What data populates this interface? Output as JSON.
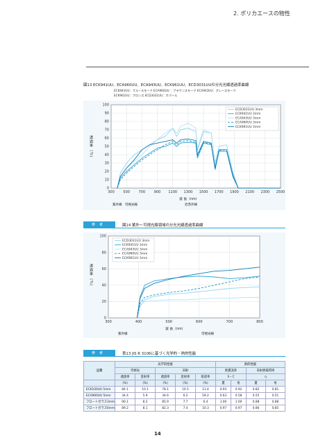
{
  "header": {
    "section_title": "2. ポリカエースの物性"
  },
  "figure13": {
    "caption": "図13 ECK941UU、ECA960UU、ECA943UU、ECK961UU、ECD3031UUの分光光線透過率曲線",
    "legend_row1": "ECK941UU：ブルースモーク ECA960UU ：ブラウンスモーク ECA943UU：グレースモーク",
    "legend_row2": "ECK961UU：ブロンズ ECD3031UU：オパール",
    "ylabel": "透過率（%）",
    "xlabel": "波 長（nm）",
    "band_uv": "紫外線",
    "band_vis": "可視光線",
    "band_ir": "近赤外線"
  },
  "figure14": {
    "badge": "参考",
    "caption": "図14 紫外〜可視光線領域の分光光線透過率曲線",
    "ylabel": "透過率（%）",
    "xlabel": "波 長（nm）",
    "band_uv": "紫外線",
    "band_vis": "可視光線"
  },
  "table13": {
    "badge": "参考",
    "caption": "表13 JIS R 3106に基づく光学的・熱的性能",
    "h_optical": "光学的性能",
    "h_thermal": "熱的性能",
    "h_product": "品種",
    "h_visible": "可視光",
    "h_solar": "日射",
    "h_u": "熱貫流率",
    "h_solar_gain": "日射熱取得率",
    "h_trans": "透過率",
    "h_refl": "反射率",
    "h_trans2": "透過率",
    "h_refl2": "反射率",
    "h_absorb": "吸収率",
    "h_summer": "夏",
    "h_winter": "冬",
    "h_sc": "S・C",
    "h_eta": "η",
    "units": [
      "(%)",
      "(%)",
      "(%)",
      "(%)",
      "(%)",
      "夏",
      "冬",
      "夏",
      "冬"
    ],
    "rows": [
      {
        "name": "ECK100UU 5mm",
        "cells": [
          "84.1",
          "10.1",
          "78.1",
          "10.5",
          "11.4",
          "0.93",
          "0.92",
          "0.82",
          "0.81"
        ]
      },
      {
        "name": "ECA960UU 5mm",
        "cells": [
          "34.4",
          "5.9",
          "34.6",
          "6.2",
          "59.2",
          "0.63",
          "0.58",
          "0.55",
          "0.51"
        ]
      },
      {
        "name": "フロートガラス3mm",
        "cells": [
          "90.1",
          "8.2",
          "85.9",
          "7.7",
          "6.4",
          "1.00",
          "1.00",
          "0.88",
          "0.88"
        ]
      },
      {
        "name": "フロートガラス6mm",
        "cells": [
          "89.2",
          "8.1",
          "82.3",
          "7.4",
          "10.3",
          "0.97",
          "0.97",
          "0.86",
          "0.85"
        ]
      }
    ]
  },
  "footer": {
    "page_number": "14"
  },
  "chart_data": [
    {
      "type": "line",
      "xlim": [
        300,
        2500
      ],
      "ylim": [
        0,
        100
      ],
      "x_ticks": [
        "300",
        "500",
        "700",
        "900",
        "1100",
        "1300",
        "1500",
        "1700",
        "1900",
        "2100",
        "2300",
        "2500"
      ],
      "y_ticks": [
        "0",
        "10",
        "20",
        "30",
        "40",
        "50",
        "60",
        "70",
        "80",
        "90",
        "100"
      ],
      "grid": true,
      "legend_position": "top-right",
      "series": [
        {
          "name": "ECD3031UU 3mm",
          "color": "#8fd3f0",
          "dash": "none",
          "points": [
            [
              380,
              0
            ],
            [
              420,
              18
            ],
            [
              500,
              30
            ],
            [
              600,
              40
            ],
            [
              700,
              46
            ],
            [
              800,
              52
            ],
            [
              900,
              58
            ],
            [
              1000,
              62
            ],
            [
              1100,
              72
            ],
            [
              1150,
              62
            ],
            [
              1200,
              70
            ],
            [
              1300,
              72
            ],
            [
              1400,
              68
            ],
            [
              1420,
              45
            ],
            [
              1500,
              68
            ],
            [
              1600,
              66
            ],
            [
              1650,
              30
            ],
            [
              1700,
              50
            ],
            [
              1800,
              52
            ],
            [
              1880,
              20
            ],
            [
              1950,
              0
            ],
            [
              2500,
              0
            ]
          ]
        },
        {
          "name": "ECK941UU 3mm",
          "color": "#2aa3d8",
          "dash": "none",
          "points": [
            [
              380,
              0
            ],
            [
              420,
              12
            ],
            [
              500,
              20
            ],
            [
              600,
              28
            ],
            [
              700,
              36
            ],
            [
              800,
              42
            ],
            [
              900,
              48
            ],
            [
              1000,
              50
            ],
            [
              1100,
              54
            ],
            [
              1150,
              50
            ],
            [
              1200,
              54
            ],
            [
              1300,
              55
            ],
            [
              1400,
              54
            ],
            [
              1420,
              36
            ],
            [
              1500,
              54
            ],
            [
              1600,
              52
            ],
            [
              1650,
              22
            ],
            [
              1700,
              44
            ],
            [
              1800,
              44
            ],
            [
              1880,
              14
            ],
            [
              1950,
              0
            ],
            [
              2500,
              0
            ]
          ]
        },
        {
          "name": "ECA943UU 3mm",
          "color": "#b6e2f4",
          "dash": "none",
          "points": [
            [
              380,
              0
            ],
            [
              420,
              14
            ],
            [
              500,
              24
            ],
            [
              600,
              32
            ],
            [
              700,
              40
            ],
            [
              800,
              50
            ],
            [
              900,
              58
            ],
            [
              1000,
              66
            ],
            [
              1100,
              72
            ],
            [
              1150,
              66
            ],
            [
              1200,
              74
            ],
            [
              1300,
              78
            ],
            [
              1400,
              72
            ],
            [
              1420,
              48
            ],
            [
              1500,
              70
            ],
            [
              1600,
              66
            ],
            [
              1650,
              28
            ],
            [
              1700,
              50
            ],
            [
              1800,
              52
            ],
            [
              1880,
              18
            ],
            [
              1950,
              0
            ],
            [
              2500,
              0
            ]
          ]
        },
        {
          "name": "ECA960UU 3mm",
          "color": "#1f8ec4",
          "dash": "3,2",
          "points": [
            [
              380,
              0
            ],
            [
              420,
              10
            ],
            [
              500,
              18
            ],
            [
              600,
              26
            ],
            [
              700,
              34
            ],
            [
              800,
              40
            ],
            [
              900,
              46
            ],
            [
              1000,
              52
            ],
            [
              1100,
              56
            ],
            [
              1150,
              52
            ],
            [
              1200,
              56
            ],
            [
              1300,
              57
            ],
            [
              1400,
              55
            ],
            [
              1420,
              38
            ],
            [
              1500,
              55
            ],
            [
              1600,
              53
            ],
            [
              1650,
              24
            ],
            [
              1700,
              45
            ],
            [
              1800,
              46
            ],
            [
              1880,
              14
            ],
            [
              1950,
              0
            ],
            [
              2500,
              0
            ]
          ]
        },
        {
          "name": "ECK961UU 3mm",
          "color": "#0f78b0",
          "dash": "none",
          "points": [
            [
              380,
              0
            ],
            [
              420,
              14
            ],
            [
              500,
              24
            ],
            [
              600,
              34
            ],
            [
              700,
              46
            ],
            [
              800,
              52
            ],
            [
              900,
              54
            ],
            [
              1000,
              56
            ],
            [
              1100,
              58
            ],
            [
              1150,
              54
            ],
            [
              1200,
              58
            ],
            [
              1300,
              59
            ],
            [
              1400,
              57
            ],
            [
              1420,
              40
            ],
            [
              1500,
              56
            ],
            [
              1600,
              54
            ],
            [
              1650,
              24
            ],
            [
              1700,
              46
            ],
            [
              1800,
              46
            ],
            [
              1880,
              16
            ],
            [
              1950,
              0
            ],
            [
              2500,
              0
            ]
          ]
        }
      ]
    },
    {
      "type": "line",
      "xlim": [
        300,
        800
      ],
      "ylim": [
        0,
        100
      ],
      "x_ticks": [
        "300",
        "400",
        "500",
        "600",
        "700",
        "800"
      ],
      "y_ticks": [
        "0",
        "20",
        "40",
        "60",
        "80",
        "100"
      ],
      "grid": true,
      "legend_position": "top-left",
      "series": [
        {
          "name": "ECD3031UU 3mm",
          "color": "#8fd3f0",
          "dash": "none",
          "points": [
            [
              395,
              0
            ],
            [
              405,
              14
            ],
            [
              420,
              22
            ],
            [
              450,
              26
            ],
            [
              500,
              29
            ],
            [
              550,
              30
            ],
            [
              600,
              32
            ],
            [
              650,
              34
            ],
            [
              700,
              36
            ],
            [
              750,
              37
            ],
            [
              800,
              38
            ]
          ]
        },
        {
          "name": "ECK941UU 3mm",
          "color": "#2aa3d8",
          "dash": "none",
          "points": [
            [
              395,
              0
            ],
            [
              405,
              26
            ],
            [
              420,
              40
            ],
            [
              450,
              45
            ],
            [
              500,
              48
            ],
            [
              550,
              50
            ],
            [
              600,
              51
            ],
            [
              650,
              50
            ],
            [
              700,
              48
            ],
            [
              750,
              49
            ],
            [
              800,
              51
            ]
          ]
        },
        {
          "name": "ECA943UU 3mm",
          "color": "#b6e2f4",
          "dash": "none",
          "points": [
            [
              395,
              0
            ],
            [
              405,
              16
            ],
            [
              420,
              20
            ],
            [
              450,
              21
            ],
            [
              500,
              22
            ],
            [
              550,
              22
            ],
            [
              600,
              23
            ],
            [
              650,
              24
            ],
            [
              700,
              24
            ],
            [
              750,
              25
            ],
            [
              800,
              25
            ]
          ]
        },
        {
          "name": "ECA960UU 3mm",
          "color": "#1f8ec4",
          "dash": "3,2",
          "points": [
            [
              395,
              0
            ],
            [
              405,
              18
            ],
            [
              420,
              25
            ],
            [
              450,
              28
            ],
            [
              500,
              31
            ],
            [
              550,
              33
            ],
            [
              600,
              36
            ],
            [
              650,
              40
            ],
            [
              700,
              44
            ],
            [
              750,
              48
            ],
            [
              800,
              50
            ]
          ]
        },
        {
          "name": "ECK961UU 3mm",
          "color": "#0f78b0",
          "dash": "none",
          "points": [
            [
              395,
              0
            ],
            [
              405,
              24
            ],
            [
              420,
              36
            ],
            [
              450,
              42
            ],
            [
              500,
              47
            ],
            [
              550,
              51
            ],
            [
              600,
              54
            ],
            [
              650,
              57
            ],
            [
              700,
              58
            ],
            [
              750,
              60
            ],
            [
              800,
              62
            ]
          ]
        }
      ]
    }
  ]
}
